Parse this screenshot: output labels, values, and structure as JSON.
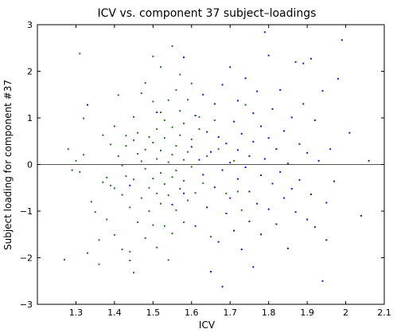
{
  "chart_data": {
    "type": "scatter",
    "title": "ICV vs. component 37 subject–loadings",
    "xlabel": "ICV",
    "ylabel": "Subject loading for component #37",
    "xlim": [
      1.2,
      2.1
    ],
    "ylim": [
      -3,
      3
    ],
    "xticks": [
      "1.3",
      "1.4",
      "1.5",
      "1.6",
      "1.7",
      "1.8",
      "1.9",
      "2",
      "2.1"
    ],
    "yticks": [
      "−3",
      "−2",
      "−1",
      "0",
      "1",
      "2",
      "3"
    ],
    "reference_line_y": 0,
    "grid": false,
    "colors": {
      "green": "#1a7a1a",
      "blue": "#1414d2",
      "axis": "#000000",
      "zero_line": "#555555"
    },
    "series": [
      {
        "color": "#1a7a1a",
        "points": [
          [
            1.27,
            -2.04
          ],
          [
            1.28,
            0.33
          ],
          [
            1.29,
            -0.12
          ],
          [
            1.3,
            0.08
          ],
          [
            1.31,
            2.38
          ],
          [
            1.31,
            -0.16
          ],
          [
            1.32,
            0.99
          ],
          [
            1.32,
            0.21
          ],
          [
            1.33,
            -1.9
          ],
          [
            1.34,
            -0.8
          ],
          [
            1.35,
            -1.02
          ],
          [
            1.36,
            -1.62
          ],
          [
            1.36,
            -2.14
          ],
          [
            1.37,
            -0.38
          ],
          [
            1.37,
            0.63
          ],
          [
            1.38,
            -0.28
          ],
          [
            1.38,
            -1.18
          ],
          [
            1.39,
            -0.45
          ],
          [
            1.39,
            0.43
          ],
          [
            1.4,
            -0.51
          ],
          [
            1.4,
            0.82
          ],
          [
            1.4,
            -1.51
          ],
          [
            1.41,
            1.49
          ],
          [
            1.41,
            0.18
          ],
          [
            1.42,
            -0.02
          ],
          [
            1.42,
            -0.65
          ],
          [
            1.42,
            -1.82
          ],
          [
            1.43,
            0.62
          ],
          [
            1.43,
            0.4
          ],
          [
            1.43,
            -0.25
          ],
          [
            1.44,
            -1.87
          ],
          [
            1.44,
            -2.06
          ],
          [
            1.44,
            -0.92
          ],
          [
            1.45,
            0.52
          ],
          [
            1.45,
            -0.32
          ],
          [
            1.45,
            -2.32
          ],
          [
            1.45,
            1.02
          ],
          [
            1.46,
            -1.24
          ],
          [
            1.46,
            0.23
          ],
          [
            1.46,
            0.68
          ],
          [
            1.47,
            -0.72
          ],
          [
            1.47,
            1.53
          ],
          [
            1.47,
            0.07
          ],
          [
            1.48,
            -1.58
          ],
          [
            1.48,
            -0.09
          ],
          [
            1.48,
            0.32
          ],
          [
            1.48,
            1.75
          ],
          [
            1.49,
            -0.5
          ],
          [
            1.49,
            -1.0
          ],
          [
            1.49,
            0.59
          ],
          [
            1.5,
            2.32
          ],
          [
            1.5,
            0.47
          ],
          [
            1.5,
            -0.3
          ],
          [
            1.5,
            -1.3
          ],
          [
            1.5,
            1.35
          ],
          [
            1.51,
            -0.62
          ],
          [
            1.51,
            0.12
          ],
          [
            1.51,
            0.76
          ],
          [
            1.51,
            -1.78
          ],
          [
            1.52,
            1.12
          ],
          [
            1.52,
            -0.18
          ],
          [
            1.52,
            0.3
          ],
          [
            1.52,
            -0.84
          ],
          [
            1.52,
            2.09
          ],
          [
            1.53,
            0.57
          ],
          [
            1.53,
            -0.42
          ],
          [
            1.53,
            -1.32
          ],
          [
            1.53,
            0.95
          ],
          [
            1.54,
            0.05
          ],
          [
            1.54,
            -2.05
          ],
          [
            1.54,
            1.38
          ],
          [
            1.54,
            -0.66
          ],
          [
            1.55,
            0.21
          ],
          [
            1.55,
            2.54
          ],
          [
            1.55,
            -0.27
          ],
          [
            1.55,
            0.8
          ],
          [
            1.55,
            -1.48
          ],
          [
            1.56,
            1.6
          ],
          [
            1.56,
            -0.13
          ],
          [
            1.56,
            0.4
          ],
          [
            1.56,
            -0.98
          ],
          [
            1.57,
            1.15
          ],
          [
            1.57,
            0.63
          ],
          [
            1.57,
            -0.52
          ],
          [
            1.57,
            1.93
          ],
          [
            1.58,
            -0.35
          ],
          [
            1.58,
            0.1
          ],
          [
            1.58,
            0.88
          ],
          [
            1.58,
            -1.24
          ],
          [
            1.59,
            1.39
          ],
          [
            1.59,
            -0.77
          ],
          [
            1.59,
            0.27
          ],
          [
            1.6,
            0.54
          ],
          [
            1.6,
            -0.05
          ],
          [
            1.6,
            1.74
          ],
          [
            1.61,
            -0.61
          ],
          [
            1.62,
            0.76
          ],
          [
            1.62,
            1.02
          ],
          [
            1.63,
            -0.4
          ],
          [
            1.64,
            0.18
          ],
          [
            1.65,
            -1.55
          ],
          [
            1.66,
            0.95
          ],
          [
            1.67,
            0.33
          ],
          [
            1.69,
            -0.62
          ],
          [
            1.71,
            0.08
          ],
          [
            1.72,
            -0.58
          ],
          [
            1.73,
            -0.98
          ],
          [
            1.74,
            1.28
          ]
        ]
      },
      {
        "color": "#1414d2",
        "points": [
          [
            1.33,
            1.28
          ],
          [
            1.44,
            -0.45
          ],
          [
            1.51,
            1.12
          ],
          [
            1.55,
            -0.86
          ],
          [
            1.58,
            2.3
          ],
          [
            1.58,
            -0.62
          ],
          [
            1.6,
            0.38
          ],
          [
            1.61,
            -1.32
          ],
          [
            1.61,
            1.05
          ],
          [
            1.62,
            0.1
          ],
          [
            1.63,
            1.5
          ],
          [
            1.63,
            -0.22
          ],
          [
            1.64,
            -0.92
          ],
          [
            1.64,
            0.7
          ],
          [
            1.65,
            -2.3
          ],
          [
            1.65,
            0.27
          ],
          [
            1.66,
            -0.49
          ],
          [
            1.66,
            1.3
          ],
          [
            1.67,
            -1.66
          ],
          [
            1.67,
            0.59
          ],
          [
            1.68,
            -0.12
          ],
          [
            1.68,
            -2.62
          ],
          [
            1.68,
            1.71
          ],
          [
            1.69,
            0.45
          ],
          [
            1.69,
            -1.05
          ],
          [
            1.7,
            0.04
          ],
          [
            1.7,
            2.09
          ],
          [
            1.7,
            -0.72
          ],
          [
            1.71,
            0.92
          ],
          [
            1.71,
            -1.42
          ],
          [
            1.72,
            0.31
          ],
          [
            1.72,
            -0.31
          ],
          [
            1.72,
            1.37
          ],
          [
            1.73,
            -1.82
          ],
          [
            1.73,
            0.66
          ],
          [
            1.74,
            -0.06
          ],
          [
            1.74,
            1.85
          ],
          [
            1.75,
            -0.58
          ],
          [
            1.75,
            0.18
          ],
          [
            1.75,
            -1.22
          ],
          [
            1.76,
            1.1
          ],
          [
            1.76,
            -2.2
          ],
          [
            1.76,
            0.49
          ],
          [
            1.77,
            -0.84
          ],
          [
            1.77,
            1.57
          ],
          [
            1.78,
            -0.23
          ],
          [
            1.78,
            0.82
          ],
          [
            1.78,
            -1.5
          ],
          [
            1.79,
            2.84
          ],
          [
            1.79,
            0.12
          ],
          [
            1.8,
            -0.96
          ],
          [
            1.8,
            0.57
          ],
          [
            1.8,
            2.34
          ],
          [
            1.81,
            -0.41
          ],
          [
            1.81,
            1.19
          ],
          [
            1.82,
            -1.28
          ],
          [
            1.82,
            0.33
          ],
          [
            1.83,
            -0.16
          ],
          [
            1.83,
            1.6
          ],
          [
            1.84,
            -0.72
          ],
          [
            1.84,
            0.72
          ],
          [
            1.85,
            -1.8
          ],
          [
            1.85,
            0.02
          ],
          [
            1.86,
            1.01
          ],
          [
            1.86,
            -0.52
          ],
          [
            1.87,
            2.2
          ],
          [
            1.87,
            -1.02
          ],
          [
            1.88,
            0.44
          ],
          [
            1.88,
            -0.33
          ],
          [
            1.89,
            2.17
          ],
          [
            1.89,
            1.3
          ],
          [
            1.9,
            -1.18
          ],
          [
            1.9,
            0.25
          ],
          [
            1.91,
            -0.64
          ],
          [
            1.91,
            2.27
          ],
          [
            1.92,
            0.95
          ],
          [
            1.92,
            -1.34
          ],
          [
            1.93,
            0.08
          ],
          [
            1.94,
            -2.5
          ],
          [
            1.94,
            1.58
          ],
          [
            1.95,
            -0.82
          ],
          [
            1.95,
            -1.62
          ],
          [
            1.96,
            0.33
          ],
          [
            1.97,
            -0.36
          ],
          [
            1.98,
            1.84
          ],
          [
            1.99,
            2.67
          ],
          [
            2.01,
            0.68
          ],
          [
            2.04,
            -1.1
          ],
          [
            2.06,
            0.08
          ]
        ]
      }
    ]
  }
}
